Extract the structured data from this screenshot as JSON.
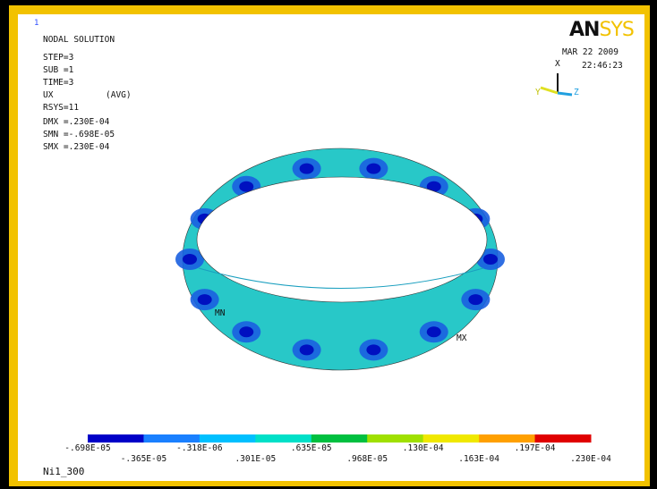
{
  "window_number": "1",
  "info": {
    "title": "NODAL SOLUTION",
    "lines": [
      "STEP=3",
      "SUB =1",
      "TIME=3",
      "UX",
      "(AVG)",
      "RSYS=11",
      "DMX =.230E-04",
      "SMN =-.698E-05",
      "SMX =.230E-04"
    ]
  },
  "logo": {
    "bold": "AN",
    "light": "SYS"
  },
  "date": "MAR 22 2009",
  "time": "22:46:23",
  "triad": {
    "x": "X",
    "y": "Y",
    "z": "Z"
  },
  "markers": {
    "min": "MN",
    "max": "MX"
  },
  "legend": {
    "labels": [
      "-.698E-05",
      "-.365E-05",
      "-.318E-06",
      ".301E-05",
      ".635E-05",
      ".968E-05",
      ".130E-04",
      ".163E-04",
      ".197E-04",
      ".230E-04"
    ]
  },
  "footer": "Ni1_300"
}
